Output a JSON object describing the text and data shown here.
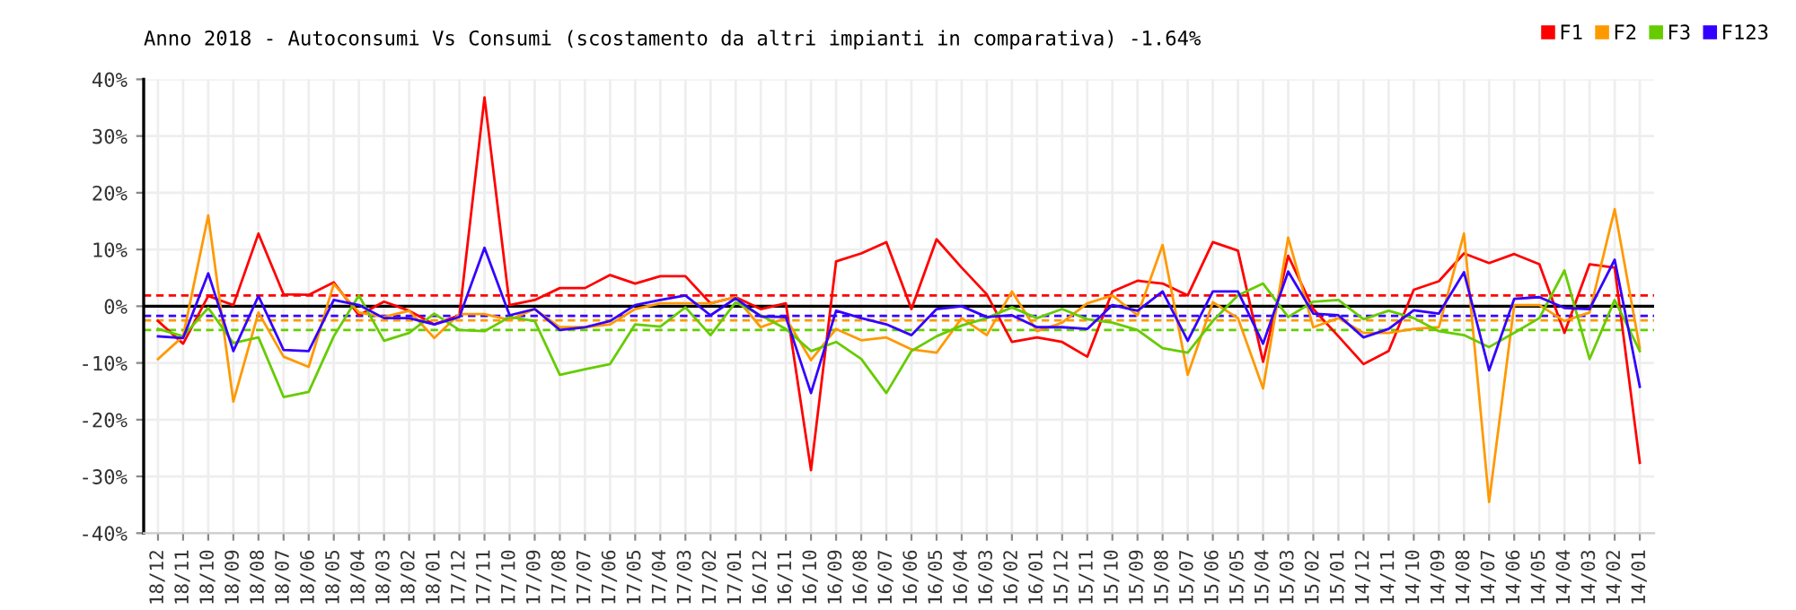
{
  "chart_data": {
    "type": "line",
    "title": "Anno 2018 - Autoconsumi Vs Consumi (scostamento da altri impianti in comparativa) -1.64%",
    "categories": [
      "18/12",
      "18/11",
      "18/10",
      "18/09",
      "18/08",
      "18/07",
      "18/06",
      "18/05",
      "18/04",
      "18/03",
      "18/02",
      "18/01",
      "17/12",
      "17/11",
      "17/10",
      "17/09",
      "17/08",
      "17/07",
      "17/06",
      "17/05",
      "17/04",
      "17/03",
      "17/02",
      "17/01",
      "16/12",
      "16/11",
      "16/10",
      "16/09",
      "16/08",
      "16/07",
      "16/06",
      "16/05",
      "16/04",
      "16/03",
      "16/02",
      "16/01",
      "15/12",
      "15/11",
      "15/10",
      "15/09",
      "15/08",
      "15/07",
      "15/06",
      "15/05",
      "15/04",
      "15/03",
      "15/02",
      "15/01",
      "14/12",
      "14/11",
      "14/10",
      "14/09",
      "14/08",
      "14/07",
      "14/06",
      "14/05",
      "14/04",
      "14/03",
      "14/02",
      "14/01"
    ],
    "series": [
      {
        "name": "F1",
        "color": "#ff0000",
        "values": [
          -2.6,
          -6.6,
          1.8,
          0.2,
          12.8,
          2.1,
          2.0,
          4.2,
          -1.6,
          0.8,
          -0.8,
          -3.2,
          -1.6,
          36.8,
          0.2,
          1.1,
          3.2,
          3.2,
          5.5,
          4.0,
          5.3,
          5.3,
          0.5,
          1.6,
          -0.5,
          0.5,
          -28.9,
          7.9,
          9.3,
          11.3,
          -0.5,
          11.8,
          6.8,
          2.1,
          -6.3,
          -5.5,
          -6.3,
          -8.9,
          2.6,
          4.5,
          4.0,
          1.9,
          11.3,
          9.8,
          -9.8,
          8.9,
          -0.5,
          -5.3,
          -10.2,
          -7.9,
          2.9,
          4.4,
          9.3,
          7.6,
          9.2,
          7.4,
          -4.7,
          7.4,
          6.8,
          -27.6
        ]
      },
      {
        "name": "F2",
        "color": "#ff9900",
        "values": [
          -9.3,
          -5.3,
          16.0,
          -16.8,
          -1.1,
          -8.9,
          -10.7,
          3.9,
          -1.1,
          -1.9,
          -0.8,
          -5.6,
          -1.4,
          -1.4,
          -2.4,
          -0.5,
          -3.7,
          -3.7,
          -3.2,
          -0.5,
          0.5,
          0.5,
          0.5,
          1.6,
          -3.7,
          -2.1,
          -9.5,
          -4.0,
          -6.0,
          -5.5,
          -7.6,
          -8.2,
          -2.1,
          -5.1,
          2.6,
          -4.4,
          -2.9,
          0.5,
          1.9,
          -1.6,
          10.8,
          -12.1,
          0.7,
          -2.1,
          -14.5,
          12.1,
          -3.7,
          -2.1,
          -4.7,
          -4.7,
          -4.0,
          -3.7,
          12.8,
          -34.5,
          0.2,
          0.2,
          -2.6,
          -1.1,
          17.1,
          -7.4
        ]
      },
      {
        "name": "F3",
        "color": "#66cc00",
        "values": [
          -4.0,
          -5.3,
          -0.3,
          -6.5,
          -5.5,
          -16.0,
          -15.1,
          -5.3,
          1.9,
          -6.1,
          -4.7,
          -1.3,
          -4.2,
          -4.4,
          -1.9,
          -2.6,
          -12.1,
          -11.1,
          -10.2,
          -3.2,
          -3.6,
          -0.2,
          -5.1,
          0.7,
          -1.6,
          -4.0,
          -7.9,
          -6.3,
          -9.3,
          -15.3,
          -7.9,
          -5.3,
          -3.4,
          -2.1,
          -0.2,
          -2.1,
          -0.5,
          -2.3,
          -2.9,
          -4.2,
          -7.4,
          -8.2,
          -2.6,
          1.9,
          4.0,
          -1.9,
          0.8,
          1.1,
          -2.3,
          -0.8,
          -2.1,
          -4.4,
          -5.1,
          -7.2,
          -4.7,
          -2.1,
          6.3,
          -9.3,
          1.1,
          -7.9
        ]
      },
      {
        "name": "F123",
        "color": "#3300ff",
        "values": [
          -5.3,
          -5.6,
          5.8,
          -7.9,
          1.8,
          -7.7,
          -7.9,
          1.1,
          0.2,
          -2.1,
          -2.1,
          -3.2,
          -1.9,
          10.3,
          -1.6,
          -0.5,
          -4.2,
          -3.7,
          -2.6,
          0.2,
          1.1,
          1.9,
          -1.6,
          1.4,
          -1.8,
          -1.9,
          -15.3,
          -0.8,
          -2.1,
          -3.2,
          -5.1,
          -0.5,
          0.0,
          -1.9,
          -1.6,
          -3.7,
          -3.7,
          -4.0,
          0.2,
          -0.8,
          2.6,
          -6.1,
          2.6,
          2.6,
          -6.6,
          6.1,
          -1.3,
          -1.6,
          -5.5,
          -4.0,
          -0.7,
          -1.3,
          6.0,
          -11.3,
          1.3,
          1.6,
          -0.3,
          -0.5,
          8.2,
          -14.2
        ]
      }
    ],
    "ylim": [
      -40,
      40
    ],
    "yticks": [
      {
        "value": -40,
        "label": "-40%"
      },
      {
        "value": -30,
        "label": "-30%"
      },
      {
        "value": -20,
        "label": "-20%"
      },
      {
        "value": -10,
        "label": "-10%"
      },
      {
        "value": 0,
        "label": "0%"
      },
      {
        "value": 10,
        "label": "10%"
      },
      {
        "value": 20,
        "label": "20%"
      },
      {
        "value": 30,
        "label": "30%"
      },
      {
        "value": 40,
        "label": "40%"
      }
    ],
    "ref_lines": [
      {
        "axis": "y",
        "value": 0,
        "color": "#000000",
        "line_style": "solid"
      },
      {
        "axis": "y",
        "value": 1.9,
        "color": "#ff0000",
        "line_style": "dashed"
      },
      {
        "axis": "y",
        "value": -1.7,
        "color": "#3300ff",
        "line_style": "dashed"
      },
      {
        "axis": "y",
        "value": -2.5,
        "color": "#ff9900",
        "line_style": "dashed"
      },
      {
        "axis": "y",
        "value": -4.2,
        "color": "#66cc00",
        "line_style": "dashed"
      }
    ],
    "grid": true,
    "legend": "top right",
    "marker": "none",
    "line_style": "solid"
  }
}
